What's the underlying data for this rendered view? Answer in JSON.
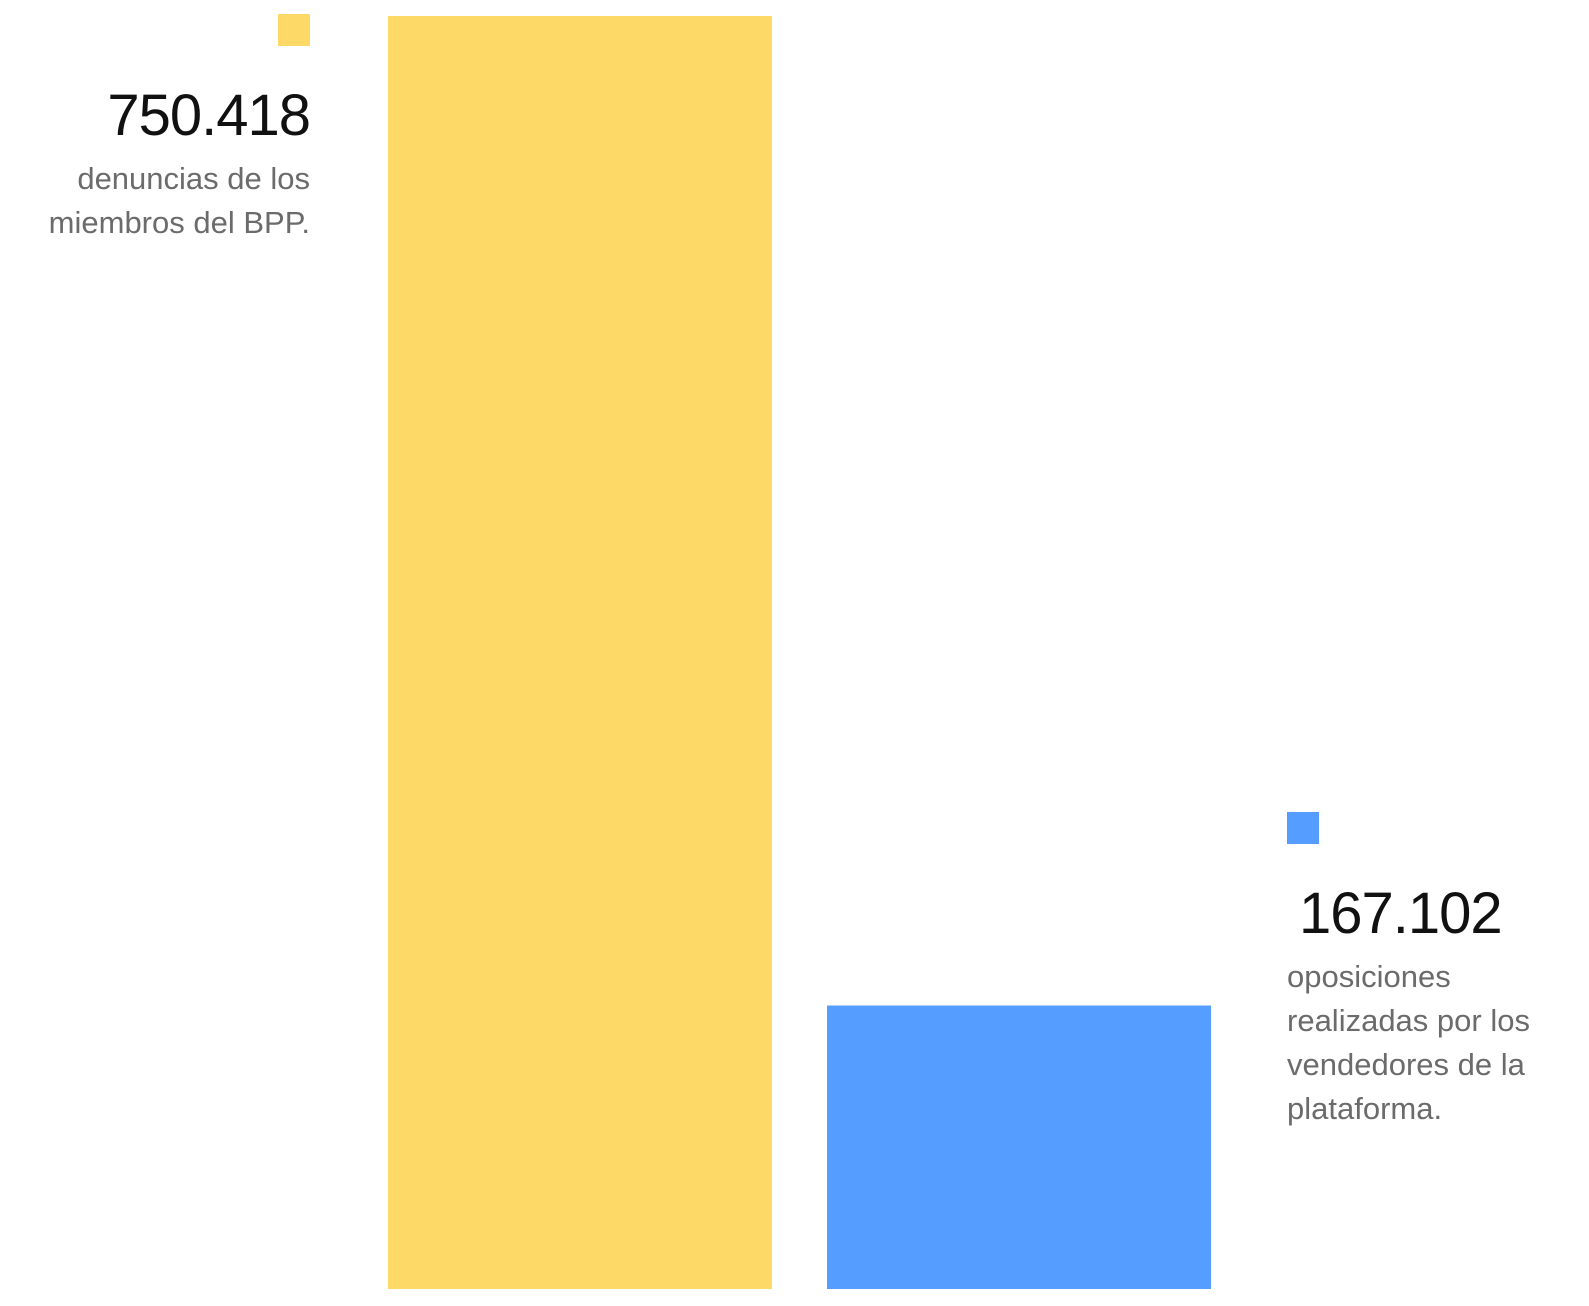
{
  "chart_data": {
    "type": "bar",
    "categories": [
      "denuncias de los miembros del BPP.",
      "oposiciones realizadas por los vendedores de la plataforma."
    ],
    "values": [
      750418,
      167102
    ],
    "value_labels": [
      "750.418",
      "167.102"
    ],
    "series": [
      {
        "name": "denuncias de los miembros del BPP.",
        "value": 750418,
        "label": "750.418",
        "description": "denuncias de los miembros del BPP.",
        "color": "#FDD967"
      },
      {
        "name": "oposiciones realizadas por los vendedores de la plataforma.",
        "value": 167102,
        "label": "167.102",
        "description": "oposiciones realizadas por los vendedores de la plataforma.",
        "color": "#559DFE"
      }
    ],
    "title": "",
    "xlabel": "",
    "ylabel": "",
    "ylim": [
      0,
      750418
    ],
    "grid": false,
    "legend": "inline-labels"
  }
}
